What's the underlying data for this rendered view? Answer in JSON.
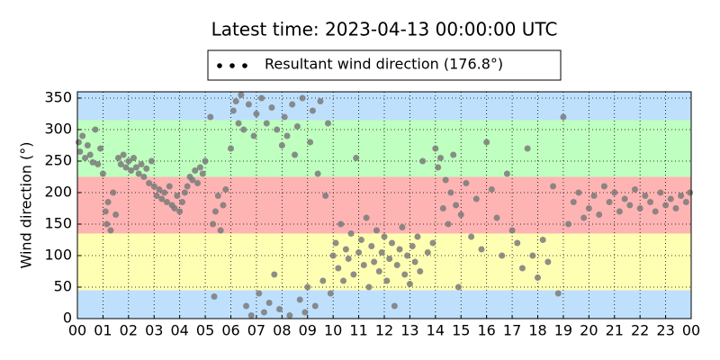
{
  "chart_data": {
    "type": "scatter",
    "title": "Latest time: 2023-04-13 00:00:00 UTC",
    "y_label": "Wind direction (°)",
    "legend": "upper center",
    "grid": true,
    "xlim": [
      0,
      24
    ],
    "ylim": [
      0,
      360
    ],
    "xticks": [
      {
        "value": 0,
        "label": "00"
      },
      {
        "value": 1,
        "label": "01"
      },
      {
        "value": 2,
        "label": "02"
      },
      {
        "value": 3,
        "label": "03"
      },
      {
        "value": 4,
        "label": "04"
      },
      {
        "value": 5,
        "label": "05"
      },
      {
        "value": 6,
        "label": "06"
      },
      {
        "value": 7,
        "label": "07"
      },
      {
        "value": 8,
        "label": "08"
      },
      {
        "value": 9,
        "label": "09"
      },
      {
        "value": 10,
        "label": "10"
      },
      {
        "value": 11,
        "label": "11"
      },
      {
        "value": 12,
        "label": "12"
      },
      {
        "value": 13,
        "label": "13"
      },
      {
        "value": 14,
        "label": "14"
      },
      {
        "value": 15,
        "label": "15"
      },
      {
        "value": 16,
        "label": "16"
      },
      {
        "value": 17,
        "label": "17"
      },
      {
        "value": 18,
        "label": "18"
      },
      {
        "value": 19,
        "label": "19"
      },
      {
        "value": 20,
        "label": "20"
      },
      {
        "value": 21,
        "label": "21"
      },
      {
        "value": 22,
        "label": "22"
      },
      {
        "value": 23,
        "label": "23"
      },
      {
        "value": 24,
        "label": "00"
      }
    ],
    "yticks": [
      0,
      50,
      100,
      150,
      200,
      250,
      300,
      350
    ],
    "bands": [
      {
        "from": 0,
        "to": 45,
        "color": "#bfe0fd"
      },
      {
        "from": 45,
        "to": 135,
        "color": "#ffffb3"
      },
      {
        "from": 135,
        "to": 225,
        "color": "#ffb4b4"
      },
      {
        "from": 225,
        "to": 315,
        "color": "#bfffbf"
      },
      {
        "from": 315,
        "to": 360,
        "color": "#bfe0fd"
      }
    ],
    "x": [
      0.05,
      0.1,
      0.2,
      0.3,
      0.4,
      0.5,
      0.6,
      0.7,
      0.8,
      0.9,
      1.0,
      1.1,
      1.15,
      1.2,
      1.3,
      1.4,
      1.5,
      1.6,
      1.7,
      1.8,
      1.9,
      2.0,
      2.1,
      2.2,
      2.3,
      2.4,
      2.5,
      2.6,
      2.7,
      2.8,
      2.9,
      3.0,
      3.1,
      3.2,
      3.3,
      3.4,
      3.5,
      3.6,
      3.7,
      3.8,
      3.9,
      4.0,
      4.1,
      4.2,
      4.3,
      4.4,
      4.5,
      4.6,
      4.7,
      4.8,
      4.9,
      5.0,
      5.2,
      5.3,
      5.35,
      5.4,
      5.5,
      5.6,
      5.7,
      5.8,
      6.0,
      6.1,
      6.2,
      6.3,
      6.4,
      6.5,
      6.6,
      6.7,
      6.8,
      6.9,
      7.0,
      7.1,
      7.2,
      7.3,
      7.4,
      7.5,
      7.6,
      7.7,
      7.8,
      7.9,
      8.0,
      8.1,
      8.2,
      8.3,
      8.4,
      8.5,
      8.6,
      8.7,
      8.8,
      8.9,
      9.0,
      9.1,
      9.2,
      9.3,
      9.4,
      9.5,
      9.6,
      9.7,
      9.8,
      9.9,
      10.0,
      10.1,
      10.2,
      10.3,
      10.4,
      10.5,
      10.6,
      10.7,
      10.8,
      10.9,
      11.0,
      11.1,
      11.2,
      11.3,
      11.4,
      11.5,
      11.6,
      11.7,
      11.8,
      11.9,
      12.0,
      12.1,
      12.2,
      12.3,
      12.4,
      12.5,
      12.6,
      12.7,
      12.8,
      12.9,
      13.0,
      13.1,
      13.2,
      13.3,
      13.4,
      13.5,
      13.7,
      13.9,
      14.0,
      14.1,
      14.2,
      14.3,
      14.4,
      14.5,
      14.6,
      14.7,
      14.8,
      14.9,
      15.0,
      15.2,
      15.4,
      15.6,
      15.8,
      16.0,
      16.2,
      16.4,
      16.6,
      16.8,
      17.0,
      17.2,
      17.4,
      17.6,
      17.8,
      18.0,
      18.2,
      18.4,
      18.6,
      18.8,
      19.0,
      19.2,
      19.4,
      19.6,
      19.8,
      20.0,
      20.2,
      20.4,
      20.6,
      20.8,
      21.0,
      21.2,
      21.4,
      21.6,
      21.8,
      22.0,
      22.2,
      22.4,
      22.6,
      22.8,
      23.0,
      23.2,
      23.4,
      23.6,
      23.8,
      23.95
    ],
    "series": [
      {
        "name": "Resultant wind direction (176.8°)",
        "color": "#7a7a7a",
        "values": [
          280,
          265,
          290,
          255,
          275,
          260,
          248,
          300,
          245,
          270,
          230,
          170,
          150,
          185,
          140,
          200,
          165,
          255,
          245,
          260,
          240,
          250,
          235,
          255,
          240,
          230,
          245,
          225,
          238,
          215,
          250,
          210,
          195,
          205,
          190,
          200,
          185,
          210,
          180,
          175,
          195,
          170,
          185,
          200,
          210,
          225,
          220,
          235,
          215,
          240,
          230,
          250,
          320,
          150,
          35,
          170,
          195,
          140,
          180,
          205,
          270,
          330,
          345,
          310,
          355,
          300,
          20,
          340,
          5,
          290,
          325,
          40,
          350,
          10,
          310,
          25,
          335,
          70,
          300,
          15,
          275,
          320,
          290,
          5,
          340,
          260,
          305,
          30,
          350,
          10,
          50,
          280,
          330,
          20,
          230,
          345,
          60,
          195,
          310,
          40,
          100,
          120,
          80,
          150,
          60,
          110,
          95,
          135,
          70,
          255,
          105,
          125,
          85,
          160,
          50,
          115,
          90,
          140,
          75,
          105,
          130,
          60,
          95,
          120,
          20,
          85,
          110,
          145,
          70,
          100,
          55,
          115,
          90,
          130,
          75,
          250,
          105,
          120,
          270,
          240,
          255,
          175,
          220,
          150,
          200,
          260,
          180,
          50,
          165,
          215,
          130,
          190,
          110,
          280,
          205,
          160,
          100,
          230,
          140,
          120,
          80,
          270,
          100,
          65,
          125,
          90,
          210,
          40,
          320,
          150,
          185,
          200,
          160,
          175,
          195,
          165,
          210,
          185,
          200,
          170,
          190,
          180,
          205,
          175,
          195,
          185,
          170,
          200,
          180,
          190,
          175,
          195,
          185,
          200
        ]
      }
    ]
  }
}
